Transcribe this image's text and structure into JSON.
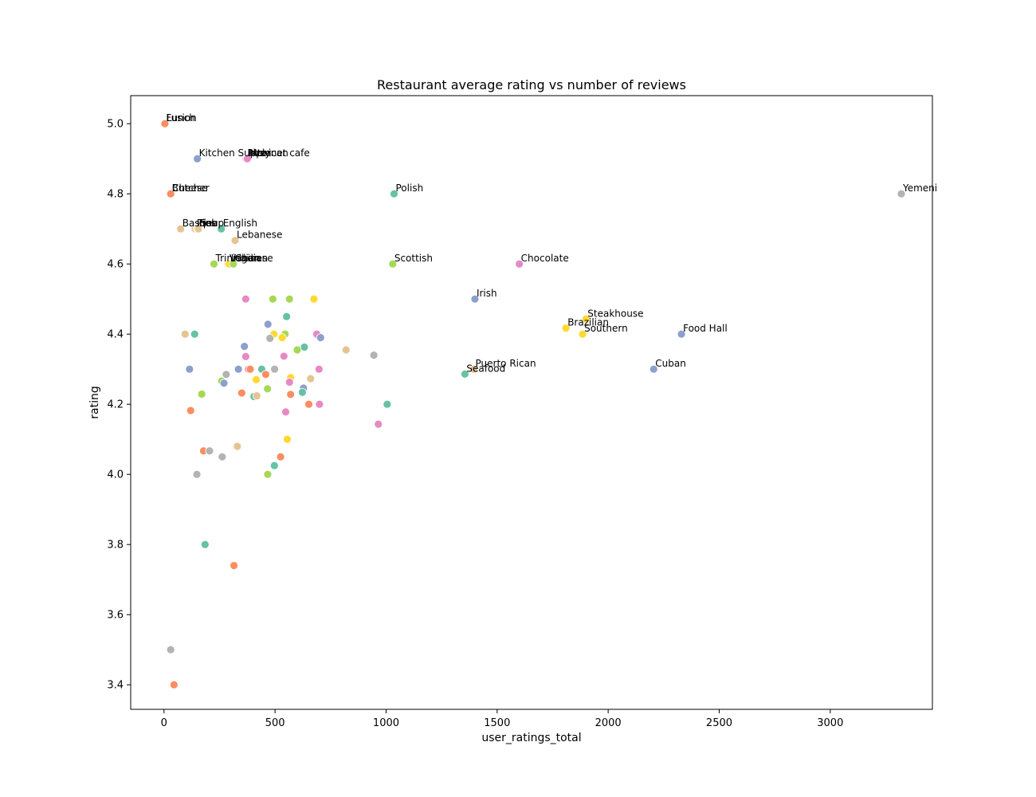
{
  "chart_data": {
    "type": "scatter",
    "title": "Restaurant average rating vs number of reviews",
    "xlabel": "user_ratings_total",
    "ylabel": "rating",
    "xlim": [
      -150,
      3460
    ],
    "ylim": [
      3.33,
      5.08
    ],
    "xticks": [
      0,
      500,
      1000,
      1500,
      2000,
      2500,
      3000
    ],
    "xtick_labels": [
      "0",
      "500",
      "1000",
      "1500",
      "2000",
      "2500",
      "3000"
    ],
    "yticks": [
      3.4,
      3.6,
      3.8,
      4.0,
      4.2,
      4.4,
      4.6,
      4.8,
      5.0
    ],
    "ytick_labels": [
      "3.4",
      "3.6",
      "3.8",
      "4.0",
      "4.2",
      "4.4",
      "4.6",
      "4.8",
      "5.0"
    ],
    "grid": false,
    "palette": {
      "orange": "#fc8d62",
      "blue": "#8da0cb",
      "pink": "#e78ac3",
      "green": "#66c2a5",
      "lime": "#a6d854",
      "yellow": "#ffd92f",
      "tan": "#e5c494",
      "gray": "#b3b3b3"
    },
    "points": [
      {
        "x": 2,
        "y": 5.0,
        "color": "orange",
        "label": "Fusion"
      },
      {
        "x": 4,
        "y": 5.0,
        "color": "orange",
        "label": "Lunch"
      },
      {
        "x": 150,
        "y": 4.9,
        "color": "blue",
        "label": "Kitchen Supply"
      },
      {
        "x": 368,
        "y": 4.9,
        "color": "pink",
        "label": "Pizza"
      },
      {
        "x": 373,
        "y": 4.9,
        "color": "pink",
        "label": "Internet cafe"
      },
      {
        "x": 375,
        "y": 4.9,
        "color": "pink",
        "label": "Mexican"
      },
      {
        "x": 28,
        "y": 4.8,
        "color": "orange",
        "label": "Butcher"
      },
      {
        "x": 30,
        "y": 4.8,
        "color": "orange",
        "label": "Cheese"
      },
      {
        "x": 1036,
        "y": 4.8,
        "color": "green",
        "label": "Polish"
      },
      {
        "x": 3320,
        "y": 4.8,
        "color": "gray",
        "label": "Yemeni"
      },
      {
        "x": 75,
        "y": 4.7,
        "color": "tan",
        "label": "Basque"
      },
      {
        "x": 140,
        "y": 4.7,
        "color": "tan",
        "label": "Pies"
      },
      {
        "x": 150,
        "y": 4.7,
        "color": "tan",
        "label": "Fish"
      },
      {
        "x": 155,
        "y": 4.7,
        "color": "tan",
        "label": "Soup"
      },
      {
        "x": 258,
        "y": 4.7,
        "color": "green",
        "label": "English"
      },
      {
        "x": 320,
        "y": 4.667,
        "color": "tan",
        "label": "Lebanese"
      },
      {
        "x": 225,
        "y": 4.6,
        "color": "lime",
        "label": "Trinidadian"
      },
      {
        "x": 288,
        "y": 4.6,
        "color": "yellow",
        "label": "Vegan"
      },
      {
        "x": 294,
        "y": 4.6,
        "color": "yellow",
        "label": "Indian"
      },
      {
        "x": 312,
        "y": 4.6,
        "color": "lime",
        "label": "Chinese"
      },
      {
        "x": 1030,
        "y": 4.6,
        "color": "lime",
        "label": "Scottish"
      },
      {
        "x": 1600,
        "y": 4.6,
        "color": "pink",
        "label": "Chocolate"
      },
      {
        "x": 1400,
        "y": 4.5,
        "color": "blue",
        "label": "Irish"
      },
      {
        "x": 1900,
        "y": 4.443,
        "color": "yellow",
        "label": "Steakhouse"
      },
      {
        "x": 1810,
        "y": 4.417,
        "color": "yellow",
        "label": "Brazilian"
      },
      {
        "x": 1885,
        "y": 4.4,
        "color": "yellow",
        "label": "Southern"
      },
      {
        "x": 2330,
        "y": 4.4,
        "color": "blue",
        "label": "Food Hall"
      },
      {
        "x": 1395,
        "y": 4.3,
        "color": "tan",
        "label": "Puerto Rican"
      },
      {
        "x": 2205,
        "y": 4.3,
        "color": "blue",
        "label": "Cuban"
      },
      {
        "x": 1355,
        "y": 4.286,
        "color": "green",
        "label": "Seafood"
      },
      {
        "x": 368,
        "y": 4.5,
        "color": "pink",
        "label": ""
      },
      {
        "x": 490,
        "y": 4.5,
        "color": "lime",
        "label": ""
      },
      {
        "x": 565,
        "y": 4.5,
        "color": "lime",
        "label": ""
      },
      {
        "x": 675,
        "y": 4.5,
        "color": "yellow",
        "label": ""
      },
      {
        "x": 552,
        "y": 4.45,
        "color": "green",
        "label": ""
      },
      {
        "x": 468,
        "y": 4.428,
        "color": "blue",
        "label": ""
      },
      {
        "x": 95,
        "y": 4.4,
        "color": "tan",
        "label": ""
      },
      {
        "x": 138,
        "y": 4.4,
        "color": "green",
        "label": ""
      },
      {
        "x": 495,
        "y": 4.4,
        "color": "yellow",
        "label": ""
      },
      {
        "x": 545,
        "y": 4.4,
        "color": "lime",
        "label": ""
      },
      {
        "x": 688,
        "y": 4.4,
        "color": "pink",
        "label": ""
      },
      {
        "x": 477,
        "y": 4.388,
        "color": "gray",
        "label": ""
      },
      {
        "x": 532,
        "y": 4.39,
        "color": "yellow",
        "label": ""
      },
      {
        "x": 705,
        "y": 4.39,
        "color": "blue",
        "label": ""
      },
      {
        "x": 362,
        "y": 4.365,
        "color": "blue",
        "label": ""
      },
      {
        "x": 632,
        "y": 4.363,
        "color": "green",
        "label": ""
      },
      {
        "x": 600,
        "y": 4.355,
        "color": "lime",
        "label": ""
      },
      {
        "x": 820,
        "y": 4.355,
        "color": "tan",
        "label": ""
      },
      {
        "x": 368,
        "y": 4.336,
        "color": "pink",
        "label": ""
      },
      {
        "x": 540,
        "y": 4.337,
        "color": "pink",
        "label": ""
      },
      {
        "x": 945,
        "y": 4.34,
        "color": "gray",
        "label": ""
      },
      {
        "x": 115,
        "y": 4.3,
        "color": "blue",
        "label": ""
      },
      {
        "x": 335,
        "y": 4.3,
        "color": "blue",
        "label": ""
      },
      {
        "x": 380,
        "y": 4.3,
        "color": "pink",
        "label": ""
      },
      {
        "x": 388,
        "y": 4.3,
        "color": "orange",
        "label": ""
      },
      {
        "x": 440,
        "y": 4.3,
        "color": "green",
        "label": ""
      },
      {
        "x": 498,
        "y": 4.3,
        "color": "gray",
        "label": ""
      },
      {
        "x": 698,
        "y": 4.3,
        "color": "pink",
        "label": ""
      },
      {
        "x": 280,
        "y": 4.285,
        "color": "gray",
        "label": ""
      },
      {
        "x": 458,
        "y": 4.285,
        "color": "orange",
        "label": ""
      },
      {
        "x": 570,
        "y": 4.276,
        "color": "yellow",
        "label": ""
      },
      {
        "x": 660,
        "y": 4.273,
        "color": "tan",
        "label": ""
      },
      {
        "x": 260,
        "y": 4.266,
        "color": "lime",
        "label": ""
      },
      {
        "x": 415,
        "y": 4.27,
        "color": "yellow",
        "label": ""
      },
      {
        "x": 565,
        "y": 4.263,
        "color": "pink",
        "label": ""
      },
      {
        "x": 270,
        "y": 4.26,
        "color": "blue",
        "label": ""
      },
      {
        "x": 466,
        "y": 4.244,
        "color": "lime",
        "label": ""
      },
      {
        "x": 628,
        "y": 4.246,
        "color": "blue",
        "label": ""
      },
      {
        "x": 623,
        "y": 4.234,
        "color": "green",
        "label": ""
      },
      {
        "x": 350,
        "y": 4.232,
        "color": "orange",
        "label": ""
      },
      {
        "x": 170,
        "y": 4.229,
        "color": "lime",
        "label": ""
      },
      {
        "x": 570,
        "y": 4.228,
        "color": "orange",
        "label": ""
      },
      {
        "x": 405,
        "y": 4.222,
        "color": "green",
        "label": ""
      },
      {
        "x": 418,
        "y": 4.224,
        "color": "tan",
        "label": ""
      },
      {
        "x": 652,
        "y": 4.2,
        "color": "orange",
        "label": ""
      },
      {
        "x": 700,
        "y": 4.2,
        "color": "pink",
        "label": ""
      },
      {
        "x": 1005,
        "y": 4.2,
        "color": "green",
        "label": ""
      },
      {
        "x": 120,
        "y": 4.182,
        "color": "orange",
        "label": ""
      },
      {
        "x": 548,
        "y": 4.178,
        "color": "pink",
        "label": ""
      },
      {
        "x": 965,
        "y": 4.143,
        "color": "pink",
        "label": ""
      },
      {
        "x": 555,
        "y": 4.1,
        "color": "yellow",
        "label": ""
      },
      {
        "x": 330,
        "y": 4.08,
        "color": "tan",
        "label": ""
      },
      {
        "x": 178,
        "y": 4.067,
        "color": "orange",
        "label": ""
      },
      {
        "x": 205,
        "y": 4.067,
        "color": "gray",
        "label": ""
      },
      {
        "x": 262,
        "y": 4.05,
        "color": "gray",
        "label": ""
      },
      {
        "x": 525,
        "y": 4.05,
        "color": "orange",
        "label": ""
      },
      {
        "x": 497,
        "y": 4.025,
        "color": "green",
        "label": ""
      },
      {
        "x": 148,
        "y": 4.0,
        "color": "gray",
        "label": ""
      },
      {
        "x": 467,
        "y": 4.0,
        "color": "lime",
        "label": ""
      },
      {
        "x": 185,
        "y": 3.8,
        "color": "green",
        "label": ""
      },
      {
        "x": 315,
        "y": 3.74,
        "color": "orange",
        "label": ""
      },
      {
        "x": 30,
        "y": 3.5,
        "color": "gray",
        "label": ""
      },
      {
        "x": 45,
        "y": 3.4,
        "color": "orange",
        "label": ""
      }
    ]
  }
}
